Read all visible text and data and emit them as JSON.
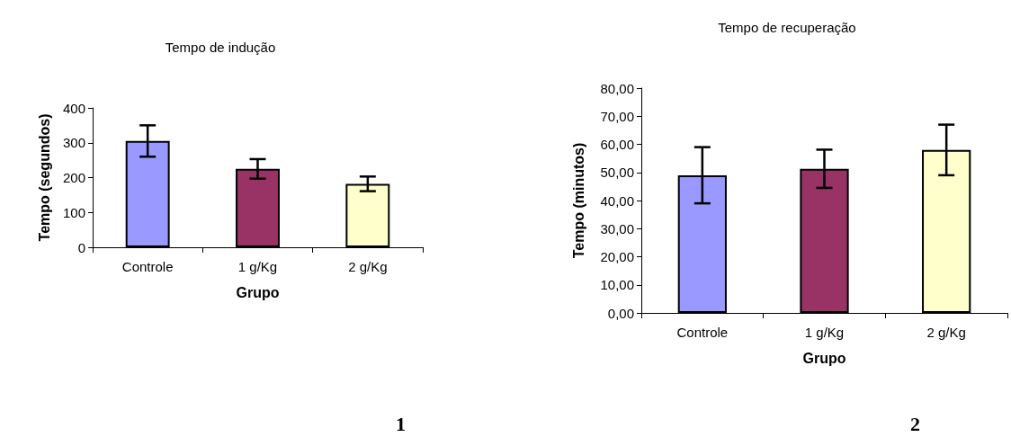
{
  "chart_data": [
    {
      "type": "bar",
      "title": "Tempo de indução",
      "xlabel": "Grupo",
      "ylabel": "Tempo (segundos)",
      "categories": [
        "Controle",
        "1 g/Kg",
        "2 g/Kg"
      ],
      "values": [
        305,
        225,
        182
      ],
      "errors": [
        45,
        28,
        21
      ],
      "colors": [
        "#9999ff",
        "#993366",
        "#ffffcc"
      ],
      "ylim": [
        0,
        400
      ],
      "yticks": [
        0,
        100,
        200,
        300,
        400
      ],
      "grid": false,
      "annotations": [
        "1"
      ]
    },
    {
      "type": "bar",
      "title": "Tempo de recuperação",
      "xlabel": "Grupo",
      "ylabel": "Tempo (minutos)",
      "categories": [
        "Controle",
        "1 g/Kg",
        "2 g/Kg"
      ],
      "values": [
        49,
        51.3,
        58
      ],
      "errors": [
        10,
        6.8,
        9
      ],
      "colors": [
        "#9999ff",
        "#993366",
        "#ffffcc"
      ],
      "ylim": [
        0,
        80
      ],
      "yticks": [
        {
          "value": 0,
          "label": "0,00"
        },
        {
          "value": 10,
          "label": "10,00"
        },
        {
          "value": 20,
          "label": "20,00"
        },
        {
          "value": 30,
          "label": "30,00"
        },
        {
          "value": 40,
          "label": "40,00"
        },
        {
          "value": 50,
          "label": "50,00"
        },
        {
          "value": 60,
          "label": "60,00"
        },
        {
          "value": 70,
          "label": "70,00"
        },
        {
          "value": 80,
          "label": "80,00"
        }
      ],
      "grid": false,
      "annotations": [
        "2"
      ]
    }
  ]
}
